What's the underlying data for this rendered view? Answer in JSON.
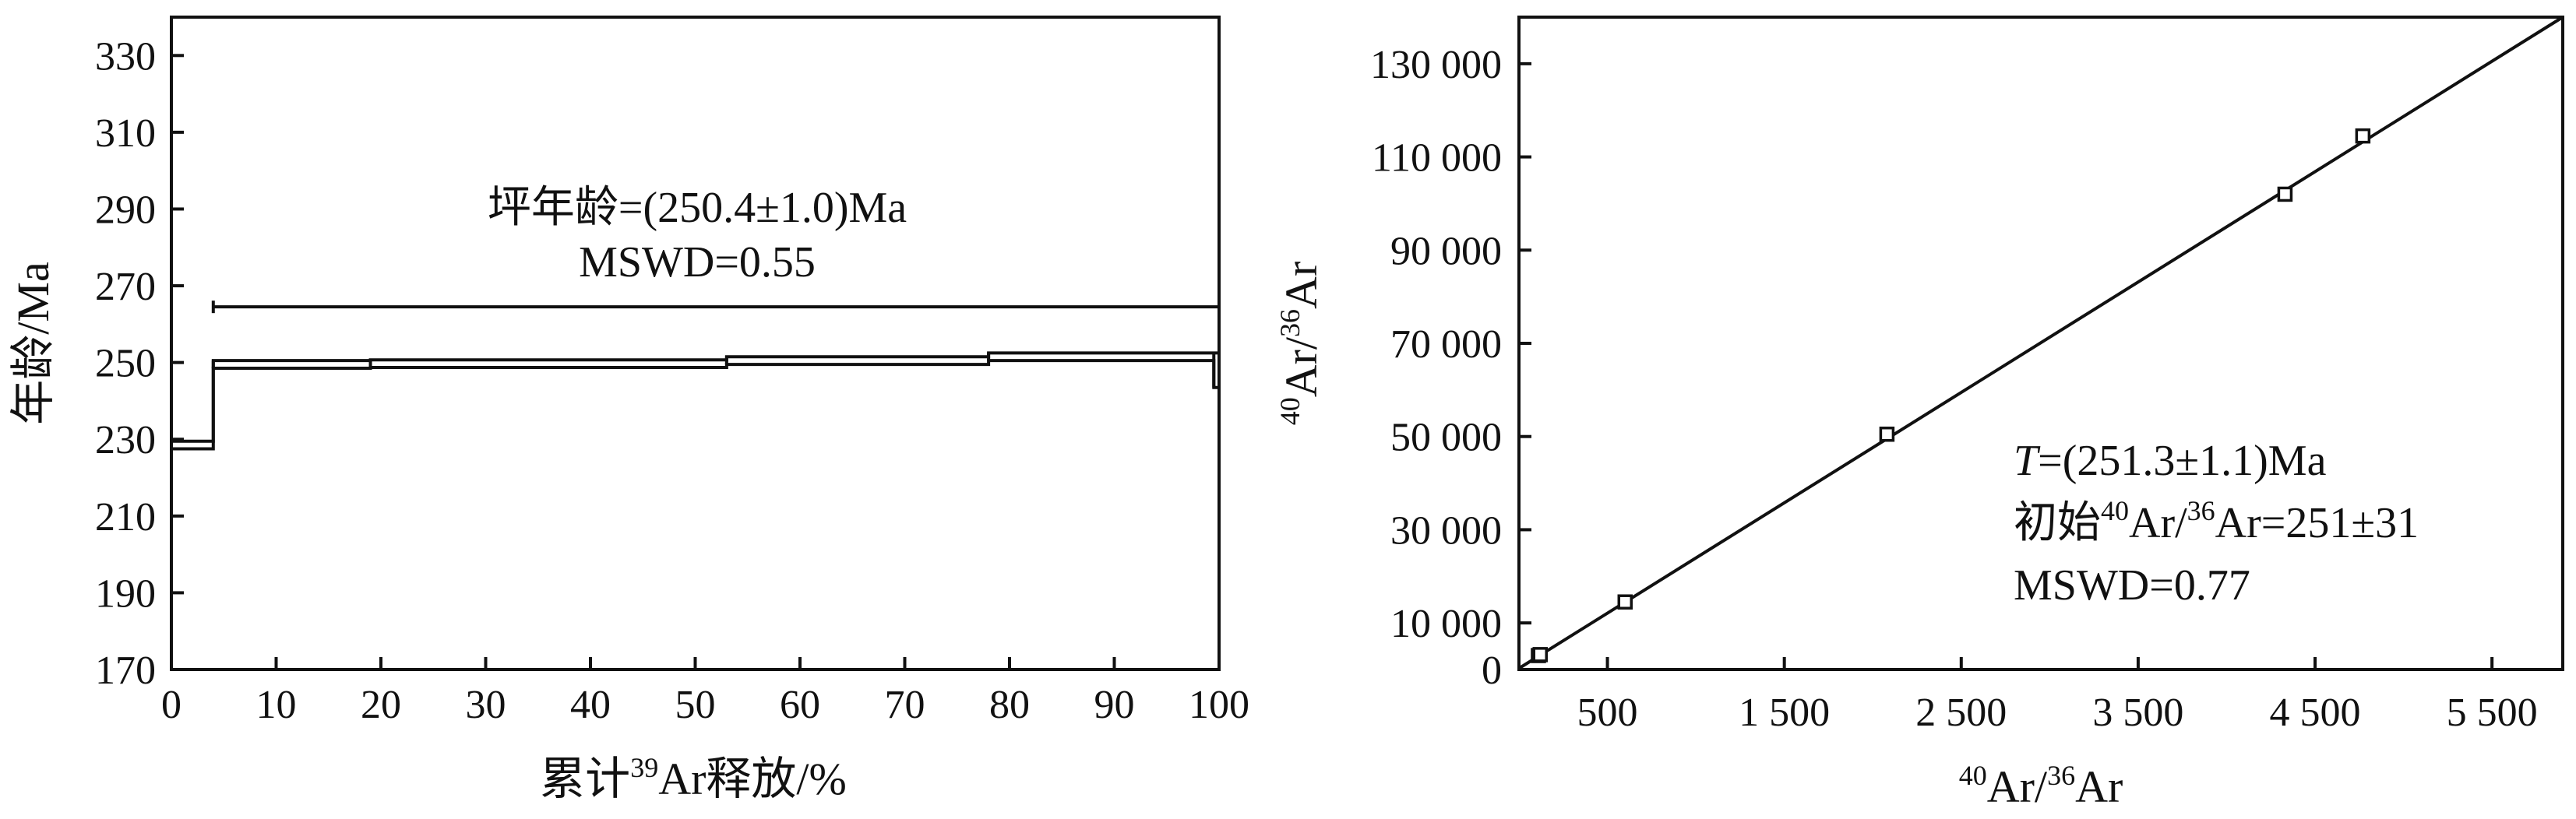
{
  "chart_data": [
    {
      "type": "step",
      "xlabel_prefix": "累计",
      "xlabel_sup": "39",
      "xlabel_suffix": "Ar释放/%",
      "ylabel": "年龄/Ma",
      "xlim": [
        0,
        100
      ],
      "ylim": [
        170,
        340
      ],
      "xticks": [
        0,
        10,
        20,
        30,
        40,
        50,
        60,
        70,
        80,
        90,
        100
      ],
      "yticks": [
        170,
        190,
        210,
        230,
        250,
        270,
        290,
        310,
        330
      ],
      "steps": [
        {
          "x_start": 0,
          "x_end": 4,
          "age_low": 227.5,
          "age_high": 229.5
        },
        {
          "x_start": 4,
          "x_end": 19,
          "age_low": 248.5,
          "age_high": 250.5
        },
        {
          "x_start": 19,
          "x_end": 53,
          "age_low": 248.7,
          "age_high": 250.7
        },
        {
          "x_start": 53,
          "x_end": 78,
          "age_low": 249.5,
          "age_high": 251.5
        },
        {
          "x_start": 78,
          "x_end": 99.5,
          "age_low": 250.5,
          "age_high": 252.5
        },
        {
          "x_start": 99.5,
          "x_end": 100,
          "age_low": 243.5,
          "age_high": 252.5
        }
      ],
      "plateau": {
        "x_start": 4,
        "x_end": 100,
        "y": 264.5
      },
      "annotations": {
        "line1": "坪年龄=(250.4±1.0)Ma",
        "line2": "MSWD=0.55"
      }
    },
    {
      "type": "scatter",
      "xlabel_sup1": "40",
      "xlabel_mid": "Ar/",
      "xlabel_sup2": "36",
      "xlabel_end": "Ar",
      "ylabel_sup1": "40",
      "ylabel_mid": "Ar/",
      "ylabel_sup2": "36",
      "ylabel_end": "Ar",
      "xlim": [
        0,
        5900
      ],
      "ylim": [
        0,
        140000
      ],
      "xticks": [
        500,
        1500,
        2500,
        3500,
        4500,
        5500
      ],
      "xtick_labels": [
        "500",
        "1 500",
        "2 500",
        "3 500",
        "4 500",
        "5 500"
      ],
      "yticks": [
        0,
        10000,
        30000,
        50000,
        70000,
        90000,
        110000,
        130000
      ],
      "ytick_labels": [
        "0",
        "10 000",
        "30 000",
        "50 000",
        "70 000",
        "90 000",
        "110 000",
        "130 000"
      ],
      "points": [
        {
          "x": 110,
          "y": 3000
        },
        {
          "x": 120,
          "y": 3200
        },
        {
          "x": 600,
          "y": 14500
        },
        {
          "x": 2080,
          "y": 50500
        },
        {
          "x": 4330,
          "y": 102000
        },
        {
          "x": 4770,
          "y": 114500
        }
      ],
      "fit_line": {
        "x1": 0,
        "y1": 251,
        "x2": 5900,
        "y2": 140000
      },
      "annotations": {
        "T_italic": "T",
        "T_rest": "=(251.3±1.1)Ma",
        "initial_prefix": "初始",
        "initial_sup1": "40",
        "initial_mid": "Ar/",
        "initial_sup2": "36",
        "initial_end": "Ar=251±31",
        "mswd": "MSWD=0.77"
      }
    }
  ]
}
